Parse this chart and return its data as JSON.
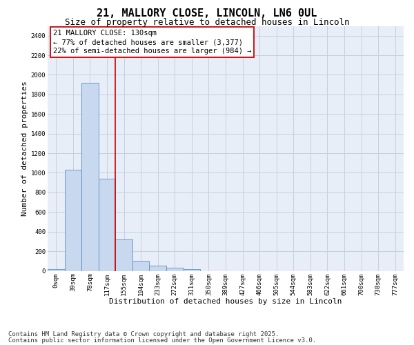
{
  "title_line1": "21, MALLORY CLOSE, LINCOLN, LN6 0UL",
  "title_line2": "Size of property relative to detached houses in Lincoln",
  "xlabel": "Distribution of detached houses by size in Lincoln",
  "ylabel": "Number of detached properties",
  "categories": [
    "0sqm",
    "39sqm",
    "78sqm",
    "117sqm",
    "155sqm",
    "194sqm",
    "233sqm",
    "272sqm",
    "311sqm",
    "350sqm",
    "389sqm",
    "427sqm",
    "466sqm",
    "505sqm",
    "544sqm",
    "583sqm",
    "622sqm",
    "661sqm",
    "700sqm",
    "738sqm",
    "777sqm"
  ],
  "values": [
    20,
    1030,
    1920,
    940,
    320,
    105,
    50,
    30,
    20,
    0,
    0,
    0,
    0,
    0,
    0,
    0,
    0,
    0,
    0,
    0,
    0
  ],
  "bar_color": "#c8d8ee",
  "bar_edge_color": "#5b8fc9",
  "grid_color": "#c8d0de",
  "background_color": "#e8eef8",
  "annotation_box_color": "#ffffff",
  "annotation_border_color": "#cc0000",
  "red_line_color": "#cc0000",
  "red_line_x": 3.5,
  "annotation_title": "21 MALLORY CLOSE: 130sqm",
  "annotation_line1": "← 77% of detached houses are smaller (3,377)",
  "annotation_line2": "22% of semi-detached houses are larger (984) →",
  "ylim": [
    0,
    2500
  ],
  "yticks": [
    0,
    200,
    400,
    600,
    800,
    1000,
    1200,
    1400,
    1600,
    1800,
    2000,
    2200,
    2400
  ],
  "footer_line1": "Contains HM Land Registry data © Crown copyright and database right 2025.",
  "footer_line2": "Contains public sector information licensed under the Open Government Licence v3.0.",
  "title_fontsize": 11,
  "subtitle_fontsize": 9,
  "axis_label_fontsize": 8,
  "tick_fontsize": 6.5,
  "annotation_fontsize": 7.5,
  "footer_fontsize": 6.5
}
